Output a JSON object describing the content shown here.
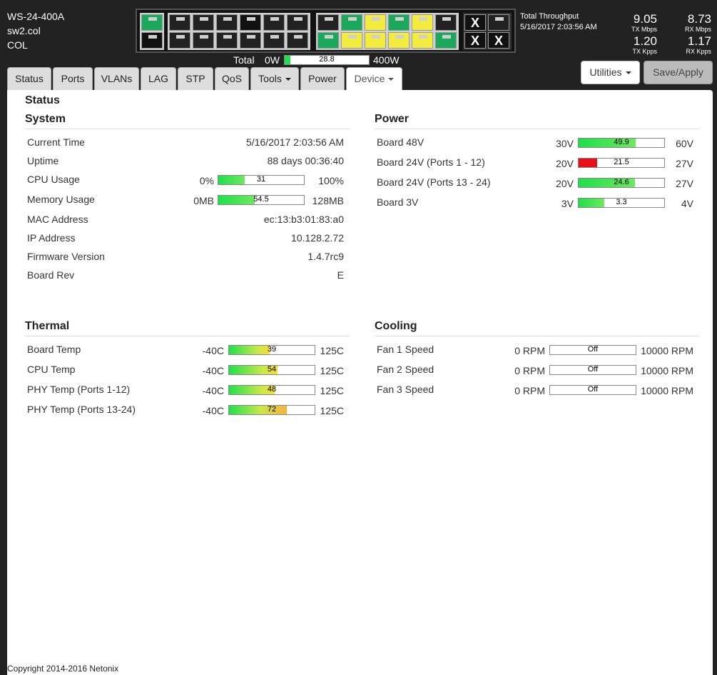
{
  "device": {
    "model": "WS-24-400A",
    "hostname": "sw2.col",
    "site": "COL"
  },
  "ports": {
    "group1": [
      {
        "top": "green",
        "bottom": "black"
      }
    ],
    "group2": [
      {
        "top": "dark",
        "bottom": "dark"
      },
      {
        "top": "dark",
        "bottom": "dark"
      },
      {
        "top": "dark",
        "bottom": "dark"
      },
      {
        "top": "black",
        "bottom": "dark"
      },
      {
        "top": "dark",
        "bottom": "dark"
      },
      {
        "top": "dark",
        "bottom": "dark"
      }
    ],
    "group3": [
      {
        "top": "dark",
        "bottom": "green"
      },
      {
        "top": "green",
        "bottom": "yellow"
      },
      {
        "top": "yellow",
        "bottom": "yellow"
      },
      {
        "top": "green",
        "bottom": "yellow"
      },
      {
        "top": "yellow",
        "bottom": "yellow"
      },
      {
        "top": "dark",
        "bottom": "green"
      }
    ],
    "group4": [
      {
        "top": "x",
        "bottom": "x"
      },
      {
        "top": "dark",
        "bottom": "x"
      }
    ],
    "x_label": "X"
  },
  "power_total": {
    "label": "Total",
    "min": "0W",
    "max": "400W",
    "value": "28.8",
    "fraction": 0.072
  },
  "throughput": {
    "title": "Total Throughput",
    "timestamp": "5/16/2017 2:03:56 AM",
    "tx_mbps": "9.05",
    "tx_mbps_label": "TX Mbps",
    "rx_mbps": "8.73",
    "rx_mbps_label": "RX Mbps",
    "tx_kpps": "1.20",
    "tx_kpps_label": "TX Kpps",
    "rx_kpps": "1.17",
    "rx_kpps_label": "RX Kpps"
  },
  "tabs": [
    "Status",
    "Ports",
    "VLANs",
    "LAG",
    "STP",
    "QoS",
    "Tools",
    "Power",
    "Device"
  ],
  "buttons": {
    "utilities": "Utilities",
    "save": "Save/Apply"
  },
  "page_title": "Status",
  "system": {
    "title": "System",
    "current_time_label": "Current Time",
    "current_time": "5/16/2017 2:03:56 AM",
    "uptime_label": "Uptime",
    "uptime": "88 days 00:36:40",
    "cpu_label": "CPU Usage",
    "cpu_min": "0%",
    "cpu_max": "100%",
    "cpu_value": "31",
    "cpu_fraction": 0.31,
    "mem_label": "Memory Usage",
    "mem_min": "0MB",
    "mem_max": "128MB",
    "mem_value": "54.5",
    "mem_fraction": 0.426,
    "mac_label": "MAC Address",
    "mac": "ec:13:b3:01:83:a0",
    "ip_label": "IP Address",
    "ip": "10.128.2.72",
    "fw_label": "Firmware Version",
    "fw": "1.4.7rc9",
    "rev_label": "Board Rev",
    "rev": "E"
  },
  "power": {
    "title": "Power",
    "rows": [
      {
        "label": "Board 48V",
        "min": "30V",
        "max": "60V",
        "value": "49.9",
        "fraction": 0.663,
        "color": "green"
      },
      {
        "label": "Board 24V (Ports 1 - 12)",
        "min": "20V",
        "max": "27V",
        "value": "21.5",
        "fraction": 0.214,
        "color": "red"
      },
      {
        "label": "Board 24V (Ports 13 - 24)",
        "min": "20V",
        "max": "27V",
        "value": "24.6",
        "fraction": 0.657,
        "color": "green"
      },
      {
        "label": "Board 3V",
        "min": "3V",
        "max": "4V",
        "value": "3.3",
        "fraction": 0.3,
        "color": "green"
      }
    ]
  },
  "thermal": {
    "title": "Thermal",
    "rows": [
      {
        "label": "Board Temp",
        "min": "-40C",
        "max": "125C",
        "value": "39",
        "fraction": 0.479,
        "color": "warm"
      },
      {
        "label": "CPU Temp",
        "min": "-40C",
        "max": "125C",
        "value": "54",
        "fraction": 0.57,
        "color": "warm"
      },
      {
        "label": "PHY Temp (Ports 1-12)",
        "min": "-40C",
        "max": "125C",
        "value": "48",
        "fraction": 0.533,
        "color": "warm"
      },
      {
        "label": "PHY Temp (Ports 13-24)",
        "min": "-40C",
        "max": "125C",
        "value": "72",
        "fraction": 0.679,
        "color": "orange"
      }
    ]
  },
  "cooling": {
    "title": "Cooling",
    "rows": [
      {
        "label": "Fan 1 Speed",
        "min": "0 RPM",
        "max": "10000 RPM",
        "value": "Off",
        "fraction": 0
      },
      {
        "label": "Fan 2 Speed",
        "min": "0 RPM",
        "max": "10000 RPM",
        "value": "Off",
        "fraction": 0
      },
      {
        "label": "Fan 3 Speed",
        "min": "0 RPM",
        "max": "10000 RPM",
        "value": "Off",
        "fraction": 0
      }
    ]
  },
  "copyright": "Copyright 2014-2016 Netonix",
  "colors": {
    "green_port": "#1aa85a",
    "yellow_port": "#f3ec3c",
    "bar_green": "#1fe04a",
    "bar_red": "#e8101a"
  }
}
